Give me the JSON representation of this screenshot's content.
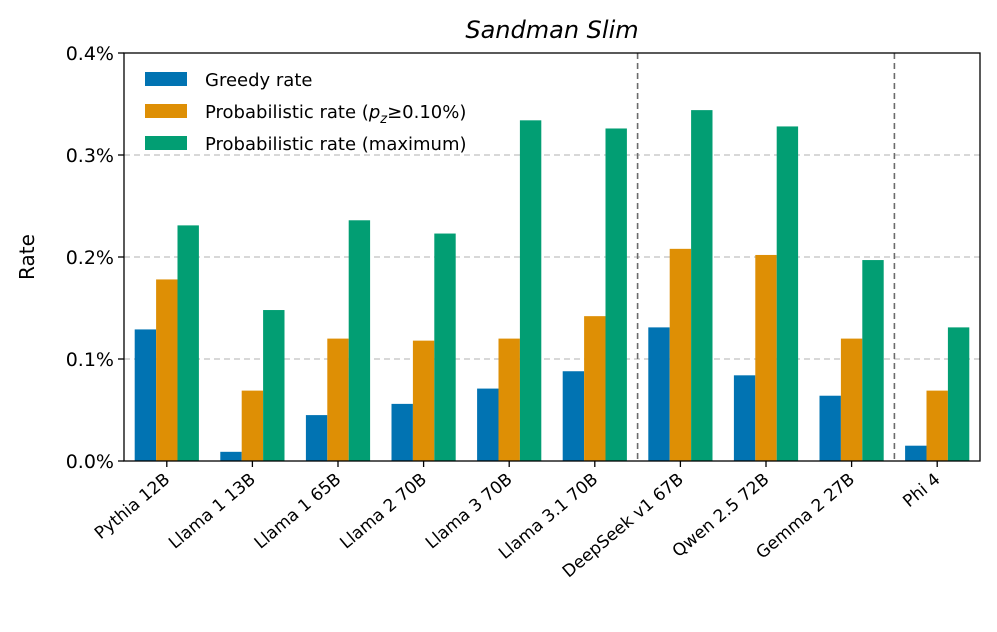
{
  "chart_data": {
    "type": "bar",
    "title": "Sandman Slim",
    "xlabel": "",
    "ylabel": "Rate",
    "ylim": [
      0,
      0.4
    ],
    "yticks": [
      0.0,
      0.1,
      0.2,
      0.3,
      0.4
    ],
    "ytick_labels": [
      "0.0%",
      "0.1%",
      "0.2%",
      "0.3%",
      "0.4%"
    ],
    "grid": "horizontal dashed",
    "legend_position": "top-left",
    "categories": [
      "Pythia 12B",
      "Llama 1 13B",
      "Llama 1 65B",
      "Llama 2 70B",
      "Llama 3 70B",
      "Llama 3.1 70B",
      "DeepSeek v1 67B",
      "Qwen 2.5 72B",
      "Gemma 2 27B",
      "Phi 4"
    ],
    "separators_after": [
      "Llama 3.1 70B",
      "Gemma 2 27B"
    ],
    "series": [
      {
        "name": "Greedy rate",
        "legend_label": "Greedy rate",
        "color": "#0173b2",
        "values": [
          0.129,
          0.009,
          0.045,
          0.056,
          0.071,
          0.088,
          0.131,
          0.084,
          0.064,
          0.015
        ]
      },
      {
        "name": "Probabilistic rate (pz≥0.10%)",
        "legend_prefix": "Probabilistic rate (",
        "legend_var": "p",
        "legend_sub": "z",
        "legend_suffix": "≥0.10%)",
        "color": "#de8f05",
        "values": [
          0.178,
          0.069,
          0.12,
          0.118,
          0.12,
          0.142,
          0.208,
          0.202,
          0.12,
          0.069
        ]
      },
      {
        "name": "Probabilistic rate (maximum)",
        "legend_label": "Probabilistic rate (maximum)",
        "color": "#029e73",
        "values": [
          0.231,
          0.148,
          0.236,
          0.223,
          0.334,
          0.326,
          0.344,
          0.328,
          0.197,
          0.131
        ]
      }
    ]
  }
}
